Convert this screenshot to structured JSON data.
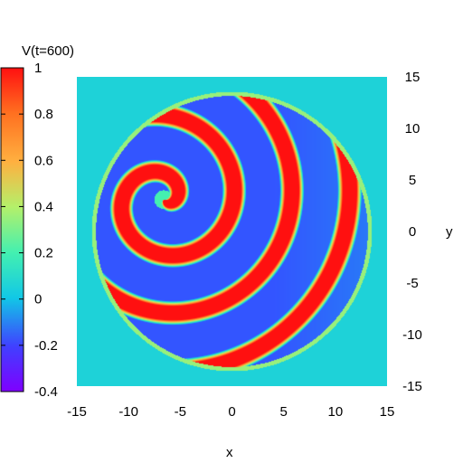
{
  "chart_data": {
    "type": "heatmap",
    "title": "V(t=600)",
    "xlabel": "x",
    "ylabel": "y",
    "xlim": [
      -15,
      15
    ],
    "ylim": [
      -15,
      15
    ],
    "x_ticks": [
      -15,
      -10,
      -5,
      0,
      5,
      10,
      15
    ],
    "y_ticks": [
      15,
      10,
      5,
      0,
      -5,
      -10,
      -15
    ],
    "x_tick_labels": [
      "-15",
      "-10",
      "-5",
      "0",
      "5",
      "10",
      "15"
    ],
    "y_tick_labels": [
      "15",
      "10",
      "5",
      "0",
      "-5",
      "-10",
      "-15"
    ],
    "colorbar": {
      "range": [
        -0.4,
        1
      ],
      "ticks": [
        1,
        0.8,
        0.6,
        0.4,
        0.2,
        0,
        -0.2,
        -0.4
      ],
      "tick_labels": [
        "1",
        "0.8",
        "0.6",
        "0.4",
        "0.2",
        "0",
        "-0.2",
        "-0.4"
      ],
      "colors": [
        "#7f00ff",
        "#3355ff",
        "#11c8e6",
        "#44f0b0",
        "#b4f06a",
        "#ffb040",
        "#ff7020",
        "#ff1010"
      ]
    },
    "domain": {
      "shape": "circle",
      "center": [
        0,
        0
      ],
      "radius": 13.3,
      "outside_value": 0.05
    },
    "pattern": {
      "kind": "spiral wave",
      "core": [
        -6.6,
        3.1
      ],
      "wavelength": 5.6,
      "front_value": 1.0,
      "rest_value": -0.2,
      "rotation": "counterclockwise-outward"
    },
    "grid": false,
    "legend": "colorbar left"
  }
}
